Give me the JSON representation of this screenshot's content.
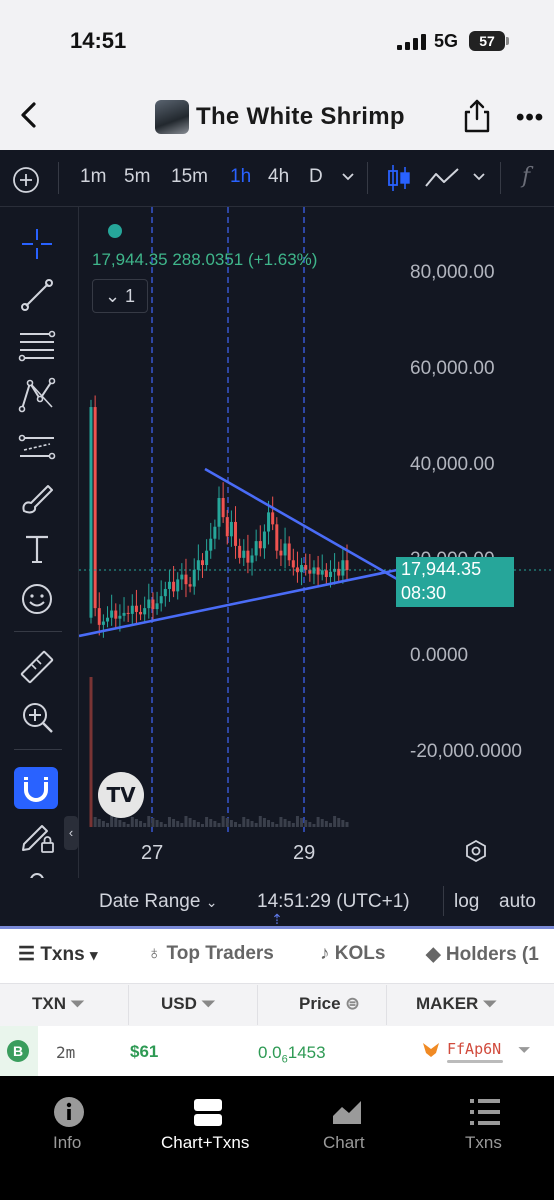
{
  "status": {
    "time": "14:51",
    "network": "5G",
    "battery": "57"
  },
  "header": {
    "title": "The White Shrimp"
  },
  "toolbar": {
    "intervals": [
      "1m",
      "5m",
      "15m",
      "1h",
      "4h",
      "D"
    ],
    "active_interval": "1h"
  },
  "legend": {
    "values": "17,944.35  288.0351 (+1.63%)",
    "collapse_count": "1"
  },
  "price_tag": {
    "price": "17,944.35",
    "countdown": "08:30"
  },
  "chart_data": {
    "type": "candlestick",
    "y_tick_labels": [
      "80,000.00",
      "60,000.00",
      "40,000.00",
      "20,000.00",
      "0.0000",
      "-20,000.0000"
    ],
    "y_ticks": [
      80000,
      60000,
      40000,
      20000,
      0,
      -20000
    ],
    "ylim": [
      -23000,
      97000
    ],
    "x_tick_labels": [
      "27",
      "29"
    ],
    "last_price": 17944.35,
    "close_series": [
      52000,
      10000,
      6500,
      7200,
      8000,
      9500,
      7800,
      8400,
      9000,
      8800,
      10500,
      9200,
      8700,
      10000,
      11800,
      9800,
      11000,
      12500,
      14000,
      15500,
      13500,
      16000,
      17000,
      15000,
      14500,
      18000,
      20000,
      19000,
      22000,
      24500,
      27000,
      33000,
      29000,
      25000,
      28000,
      23000,
      20500,
      22000,
      19500,
      21000,
      24000,
      22500,
      26000,
      30000,
      27500,
      22000,
      21000,
      23500,
      20000,
      18500,
      17500,
      19000,
      18000,
      17200,
      18500,
      17000,
      17900,
      16500,
      17600,
      18200,
      16800,
      20000,
      17944
    ],
    "drawings": [
      "triangle-pattern upper: 39500 to ~17600",
      "triangle-pattern lower: ~5000 to ~17600",
      "vertical dashed lines x4"
    ]
  },
  "bottom_bar": {
    "date_range": "Date Range",
    "clock": "14:51:29 (UTC+1)",
    "log": "log",
    "auto": "auto"
  },
  "tabs": {
    "txns": "Txns",
    "top_traders": "Top Traders",
    "kols": "KOLs",
    "holders": "Holders (1"
  },
  "table": {
    "headers": [
      "TXN",
      "USD",
      "Price",
      "MAKER"
    ],
    "row": {
      "type": "B",
      "time": "2m",
      "usd": "$61",
      "price_main": "0.0",
      "price_sub": "6",
      "price_rest": "1453",
      "maker": "FfAp6N"
    }
  },
  "nav": [
    "Info",
    "Chart+Txns",
    "Chart",
    "Txns"
  ]
}
